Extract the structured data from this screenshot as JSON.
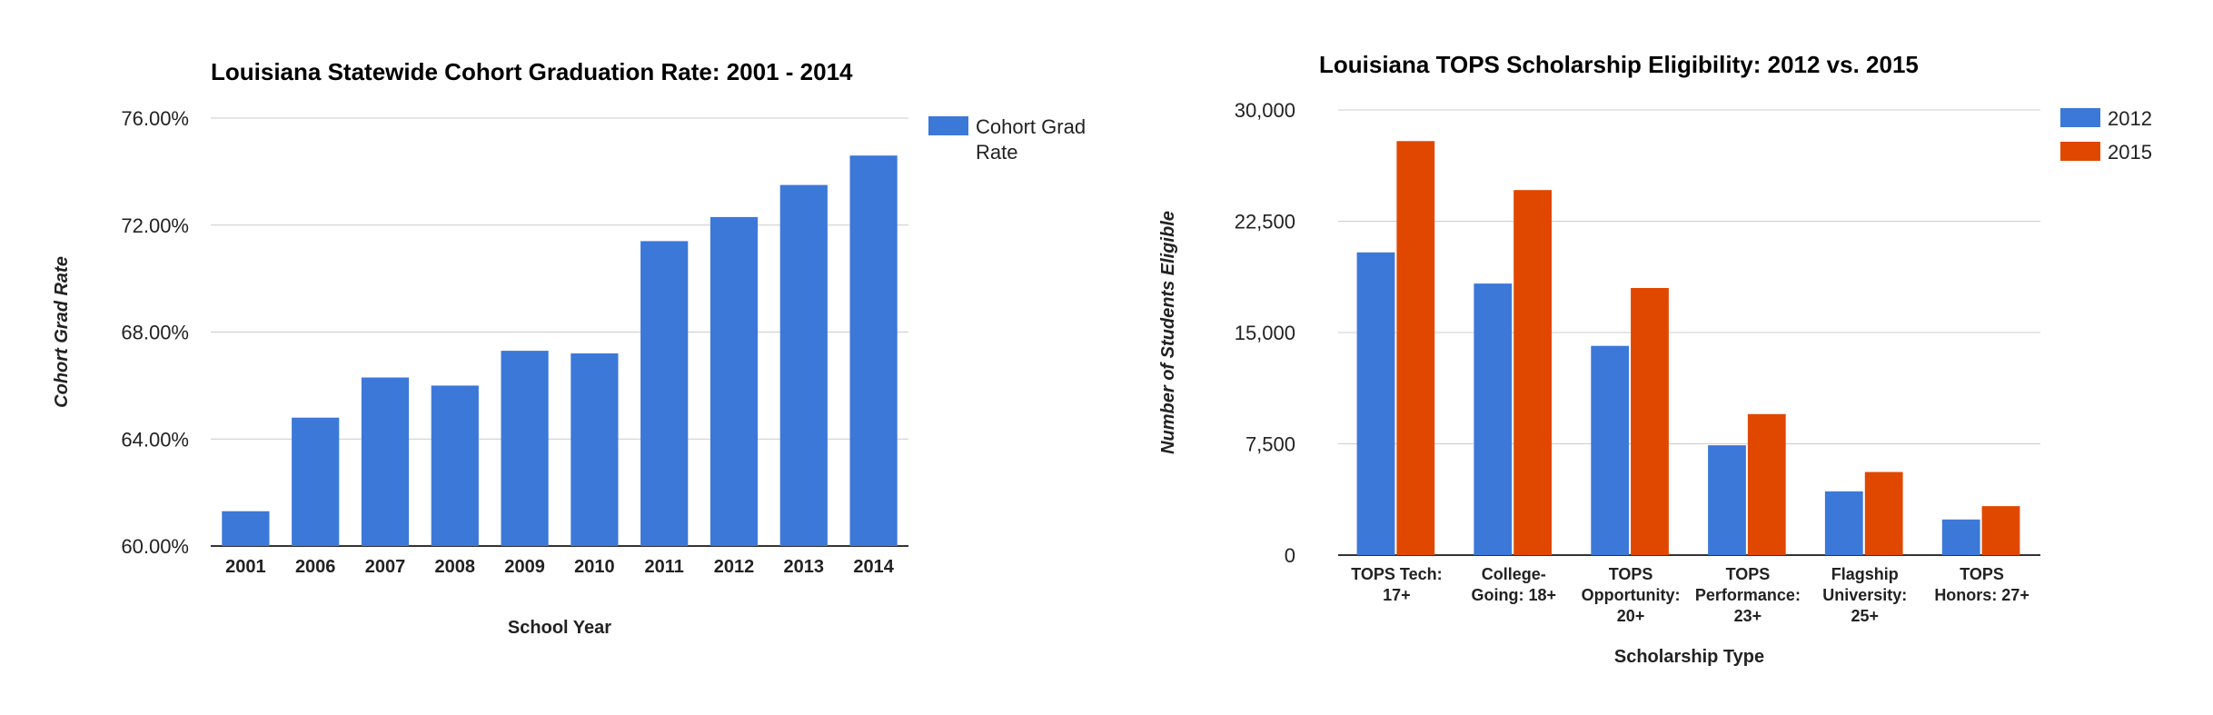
{
  "chart_data": [
    {
      "type": "bar",
      "title": "Louisiana Statewide Cohort Graduation Rate: 2001 - 2014",
      "xlabel": "School Year",
      "ylabel": "Cohort Grad Rate",
      "categories": [
        "2001",
        "2006",
        "2007",
        "2008",
        "2009",
        "2010",
        "2011",
        "2012",
        "2013",
        "2014"
      ],
      "series": [
        {
          "name": "Cohort Grad Rate",
          "color": "#3c78d8",
          "values": [
            61.3,
            64.8,
            66.3,
            66.0,
            67.3,
            67.2,
            71.4,
            72.3,
            73.5,
            74.6
          ]
        }
      ],
      "ylim": [
        60,
        76
      ],
      "y_ticks": [
        "60.00%",
        "64.00%",
        "68.00%",
        "72.00%",
        "76.00%"
      ],
      "grid": true,
      "legend_position": "right"
    },
    {
      "type": "bar",
      "title": "Louisiana TOPS Scholarship Eligibility: 2012 vs. 2015",
      "xlabel": "Scholarship Type",
      "ylabel": "Number of Students Eligible",
      "categories": [
        [
          "TOPS Tech:",
          "17+"
        ],
        [
          "College-",
          "Going: 18+"
        ],
        [
          "TOPS",
          "Opportunity:",
          "20+"
        ],
        [
          "TOPS",
          "Performance:",
          "23+"
        ],
        [
          "Flagship",
          "University:",
          "25+"
        ],
        [
          "TOPS",
          "Honors: 27+"
        ]
      ],
      "series": [
        {
          "name": "2012",
          "color": "#3c78d8",
          "values": [
            20400,
            18300,
            14100,
            7400,
            4300,
            2400
          ]
        },
        {
          "name": "2015",
          "color": "#e04800",
          "values": [
            27900,
            24600,
            18000,
            9500,
            5600,
            3300
          ]
        }
      ],
      "ylim": [
        0,
        30000
      ],
      "y_ticks": [
        "0",
        "7,500",
        "15,000",
        "22,500",
        "30,000"
      ],
      "grid": true,
      "legend_position": "right"
    }
  ]
}
